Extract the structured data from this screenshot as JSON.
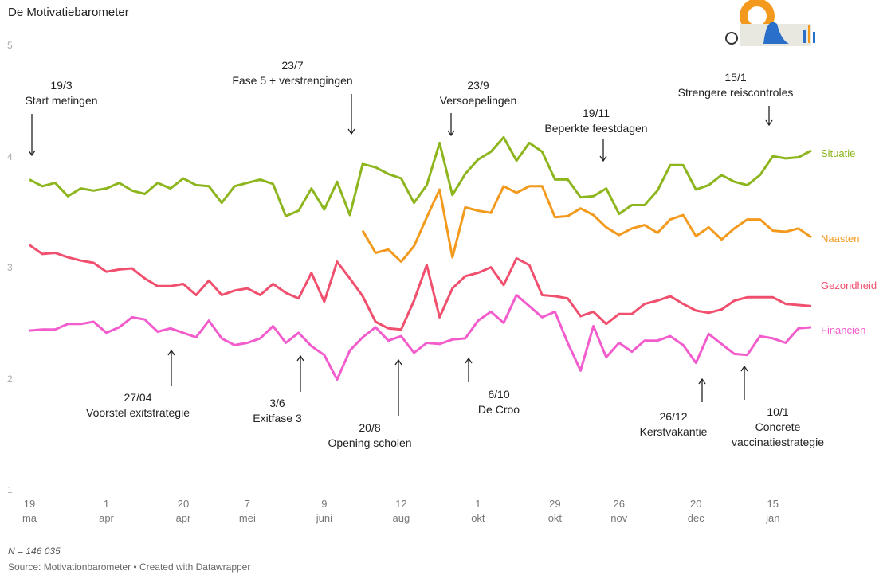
{
  "chart_data": {
    "type": "line",
    "title": "De Motivatiebarometer",
    "categories": [
      "19\nma",
      null,
      null,
      null,
      null,
      null,
      "1\napr",
      null,
      null,
      null,
      null,
      null,
      "20\napr",
      null,
      null,
      null,
      null,
      "7\nmei",
      null,
      null,
      null,
      null,
      null,
      "9\njuni",
      null,
      null,
      null,
      null,
      null,
      "12\naug",
      null,
      null,
      null,
      null,
      null,
      "1\nokt",
      null,
      null,
      null,
      null,
      null,
      "29\nokt",
      null,
      null,
      null,
      null,
      "26\nnov",
      null,
      null,
      null,
      null,
      null,
      "20\ndec",
      null,
      null,
      null,
      null,
      null,
      "15\njan",
      null,
      null,
      null
    ],
    "series": [
      {
        "name": "Situatie",
        "color": "#8db51d",
        "values": [
          3.8,
          3.74,
          3.77,
          3.65,
          3.72,
          3.7,
          3.72,
          3.77,
          3.7,
          3.67,
          3.77,
          3.72,
          3.81,
          3.75,
          3.74,
          3.59,
          3.74,
          3.77,
          3.8,
          3.76,
          3.47,
          3.52,
          3.72,
          3.53,
          3.78,
          3.48,
          3.94,
          3.91,
          3.85,
          3.81,
          3.59,
          3.75,
          4.13,
          3.66,
          3.85,
          3.98,
          4.05,
          4.18,
          3.97,
          4.13,
          4.05,
          3.8,
          3.8,
          3.64,
          3.65,
          3.72,
          3.49,
          3.57,
          3.57,
          3.7,
          3.93,
          3.93,
          3.71,
          3.75,
          3.84,
          3.78,
          3.75,
          3.84,
          4.01,
          3.99,
          4.0,
          4.06
        ]
      },
      {
        "name": "Naasten",
        "color": "#f39a1e",
        "values": [
          null,
          null,
          null,
          null,
          null,
          null,
          null,
          null,
          null,
          null,
          null,
          null,
          null,
          null,
          null,
          null,
          null,
          null,
          null,
          null,
          null,
          null,
          null,
          null,
          null,
          null,
          3.34,
          3.14,
          3.17,
          3.06,
          3.2,
          3.46,
          3.71,
          3.1,
          3.55,
          3.52,
          3.5,
          3.74,
          3.68,
          3.74,
          3.74,
          3.46,
          3.47,
          3.54,
          3.48,
          3.37,
          3.3,
          3.36,
          3.39,
          3.32,
          3.44,
          3.48,
          3.29,
          3.37,
          3.26,
          3.36,
          3.44,
          3.44,
          3.34,
          3.33,
          3.36,
          3.28
        ]
      },
      {
        "name": "Gezondheid",
        "color": "#f0506e",
        "values": [
          3.21,
          3.13,
          3.14,
          3.1,
          3.07,
          3.05,
          2.97,
          2.99,
          3.0,
          2.91,
          2.84,
          2.84,
          2.86,
          2.76,
          2.89,
          2.76,
          2.8,
          2.82,
          2.76,
          2.86,
          2.78,
          2.73,
          2.96,
          2.7,
          3.06,
          2.91,
          2.75,
          2.52,
          2.46,
          2.45,
          2.71,
          3.03,
          2.56,
          2.82,
          2.93,
          2.96,
          3.01,
          2.85,
          3.09,
          3.03,
          2.76,
          2.75,
          2.73,
          2.57,
          2.61,
          2.5,
          2.59,
          2.59,
          2.68,
          2.71,
          2.75,
          2.68,
          2.62,
          2.6,
          2.63,
          2.71,
          2.74,
          2.74,
          2.74,
          2.68,
          2.67,
          2.66
        ]
      },
      {
        "name": "Financiën",
        "color": "#f25ccd",
        "values": [
          2.44,
          2.45,
          2.45,
          2.5,
          2.5,
          2.52,
          2.42,
          2.47,
          2.56,
          2.54,
          2.43,
          2.46,
          2.42,
          2.38,
          2.53,
          2.37,
          2.31,
          2.33,
          2.37,
          2.48,
          2.33,
          2.42,
          2.3,
          2.22,
          2.0,
          2.26,
          2.38,
          2.47,
          2.35,
          2.39,
          2.24,
          2.33,
          2.32,
          2.36,
          2.37,
          2.53,
          2.61,
          2.51,
          2.76,
          2.66,
          2.56,
          2.61,
          2.33,
          2.08,
          2.48,
          2.2,
          2.33,
          2.25,
          2.35,
          2.35,
          2.39,
          2.31,
          2.15,
          2.41,
          2.32,
          2.23,
          2.22,
          2.39,
          2.37,
          2.33,
          2.46,
          2.47
        ]
      }
    ],
    "ylim": [
      1,
      5
    ],
    "yticks": [
      1,
      2,
      3,
      4,
      5
    ],
    "annotations": [
      "19/3\nStart metingen",
      "23/7\nFase 5 + verstrengingen",
      "23/9\nVersoepelingen",
      "19/11\nBeperkte feestdagen",
      "15/1\nStrengere reiscontroles",
      "27/04\nVoorstel exitstrategie",
      "3/6\nExitfase 3",
      "20/8\nOpening scholen",
      "6/10\nDe Croo",
      "26/12\nKerstvakantie",
      "10/1\nConcrete\nvaccinatiestrategie"
    ],
    "note": "N = 146 035",
    "source": "Source: Motivationbarometer • Created with Datawrapper"
  }
}
